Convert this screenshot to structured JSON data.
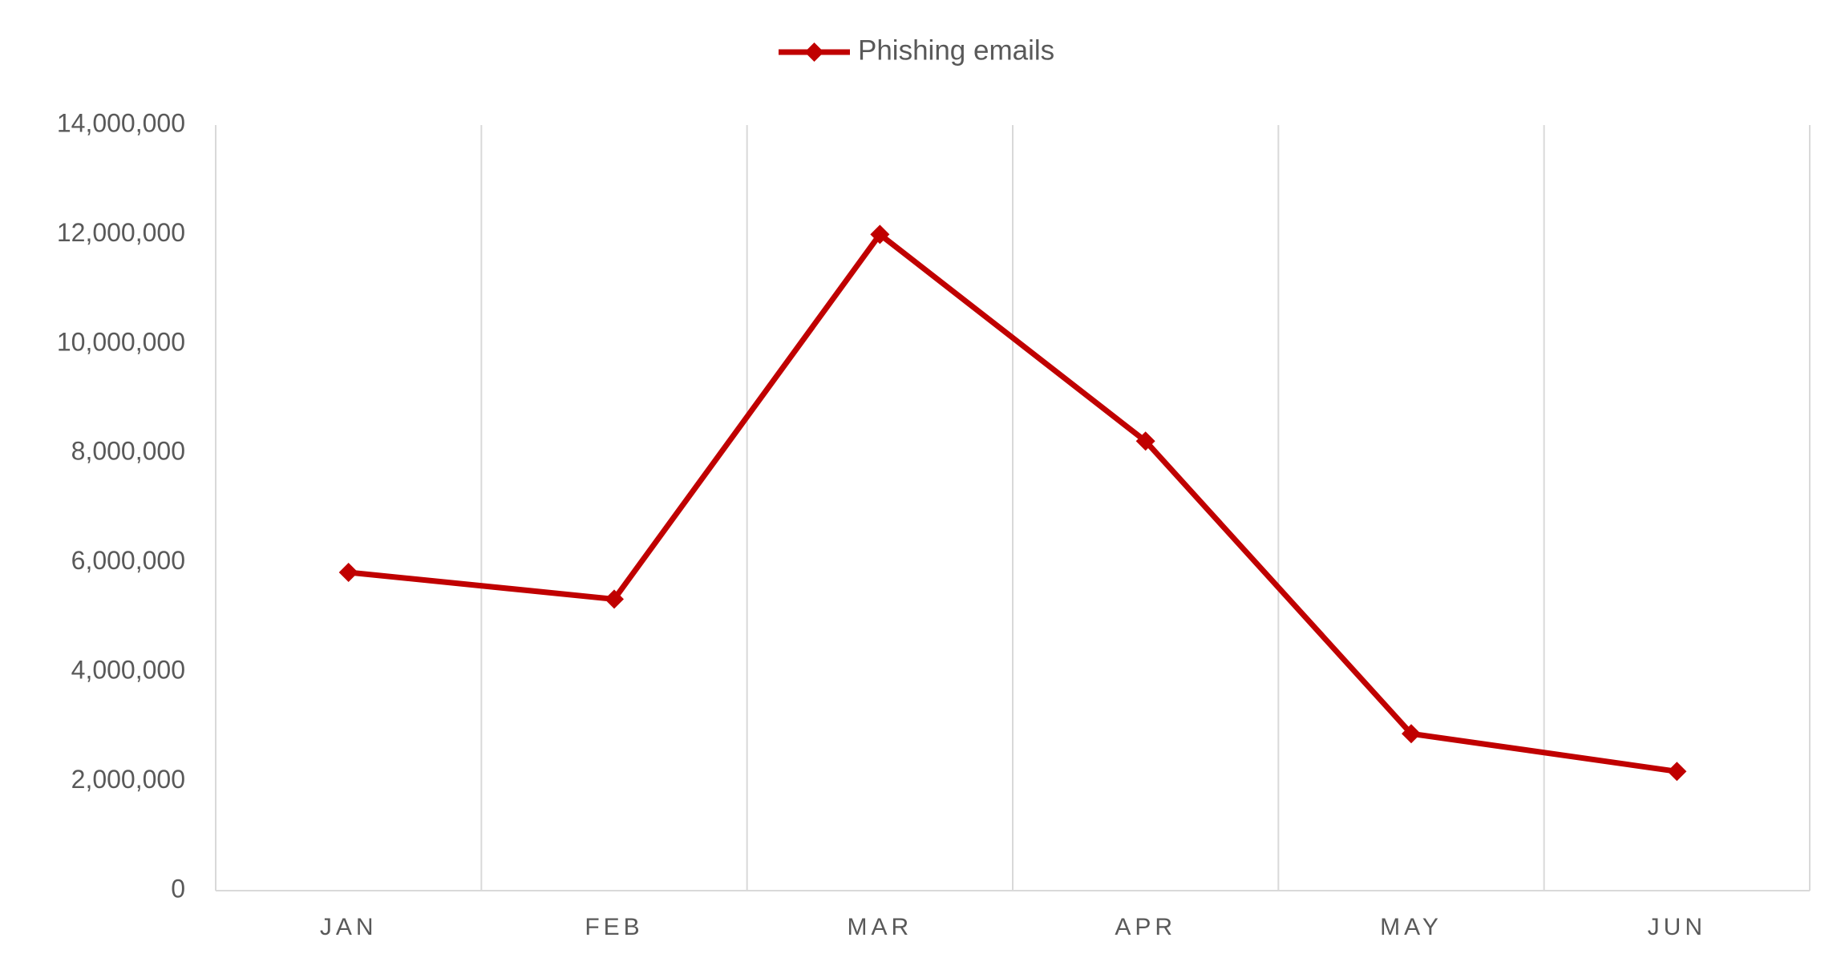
{
  "chart_data": {
    "type": "line",
    "categories": [
      "JAN",
      "FEB",
      "MAR",
      "APR",
      "MAY",
      "JUN"
    ],
    "series": [
      {
        "name": "Phishing emails",
        "color": "#c00000",
        "values": [
          5820000,
          5330000,
          12000000,
          8220000,
          2870000,
          2180000
        ]
      }
    ],
    "ylim": [
      0,
      14000000
    ],
    "yticks": [
      0,
      {
        "value": 2000000,
        "label": "2,000,000"
      },
      {
        "value": 4000000,
        "label": "4,000,000"
      },
      {
        "value": 6000000,
        "label": "6,000,000"
      },
      {
        "value": 8000000,
        "label": "8,000,000"
      },
      {
        "value": 10000000,
        "label": "10,000,000"
      },
      {
        "value": 12000000,
        "label": "12,000,000"
      },
      {
        "value": 14000000,
        "label": "14,000,000"
      }
    ],
    "legend": "top",
    "marker": "diamond"
  }
}
